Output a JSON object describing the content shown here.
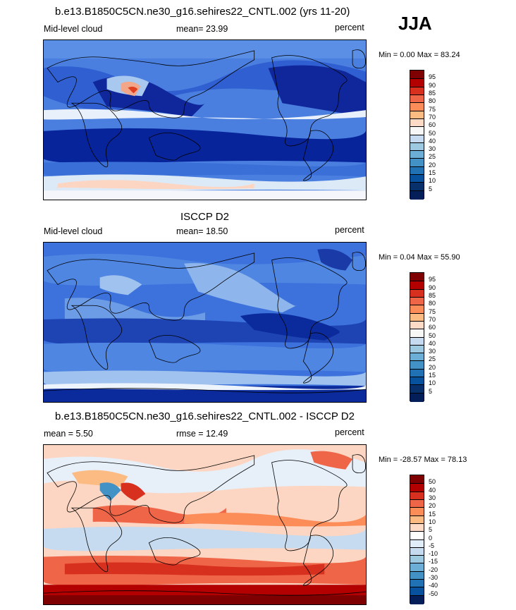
{
  "season": "JJA",
  "panels": [
    {
      "title": "b.e13.B1850C5CN.ne30_g16.sehires22_CNTL.002 (yrs 11-20)",
      "left_label": "Mid-level cloud",
      "center_label": "mean=  23.99",
      "right_label": "percent",
      "minmax": "Min =   0.00 Max =  83.24",
      "colorbar_labels": [
        "95",
        "90",
        "85",
        "80",
        "75",
        "70",
        "60",
        "50",
        "40",
        "30",
        "25",
        "20",
        "15",
        "10",
        "5"
      ],
      "colorbar_colors": [
        "#7f0000",
        "#b30000",
        "#d7301f",
        "#ef6548",
        "#fc8d59",
        "#fdbb84",
        "#fddbc7",
        "#f7f7f7",
        "#c6dbef",
        "#9ecae1",
        "#6baed6",
        "#4292c6",
        "#2171b5",
        "#08519c",
        "#08306b",
        "#041e5a"
      ]
    },
    {
      "title": "ISCCP D2",
      "left_label": "Mid-level cloud",
      "center_label": "mean=  18.50",
      "right_label": "percent",
      "minmax": "Min =   0.04 Max =  55.90",
      "colorbar_labels": [
        "95",
        "90",
        "85",
        "80",
        "75",
        "70",
        "60",
        "50",
        "40",
        "30",
        "25",
        "20",
        "15",
        "10",
        "5"
      ],
      "colorbar_colors": [
        "#7f0000",
        "#b30000",
        "#d7301f",
        "#ef6548",
        "#fc8d59",
        "#fdbb84",
        "#fddbc7",
        "#f7f7f7",
        "#c6dbef",
        "#9ecae1",
        "#6baed6",
        "#4292c6",
        "#2171b5",
        "#08519c",
        "#08306b",
        "#041e5a"
      ]
    },
    {
      "title": "b.e13.B1850C5CN.ne30_g16.sehires22_CNTL.002 - ISCCP D2",
      "left_label": "mean =   5.50",
      "center_label": "rmse =  12.49",
      "right_label": "percent",
      "minmax": "Min = -28.57 Max =  78.13",
      "colorbar_labels": [
        "50",
        "40",
        "30",
        "20",
        "15",
        "10",
        "5",
        "0",
        "-5",
        "-10",
        "-15",
        "-20",
        "-30",
        "-40",
        "-50"
      ],
      "colorbar_colors": [
        "#7f0000",
        "#b30000",
        "#d7301f",
        "#ef6548",
        "#fc8d59",
        "#fdbb84",
        "#fddbc7",
        "#ffffff",
        "#e0ecf8",
        "#c6dbef",
        "#9ecae1",
        "#6baed6",
        "#4292c6",
        "#2171b5",
        "#08519c",
        "#041e5a"
      ]
    }
  ]
}
